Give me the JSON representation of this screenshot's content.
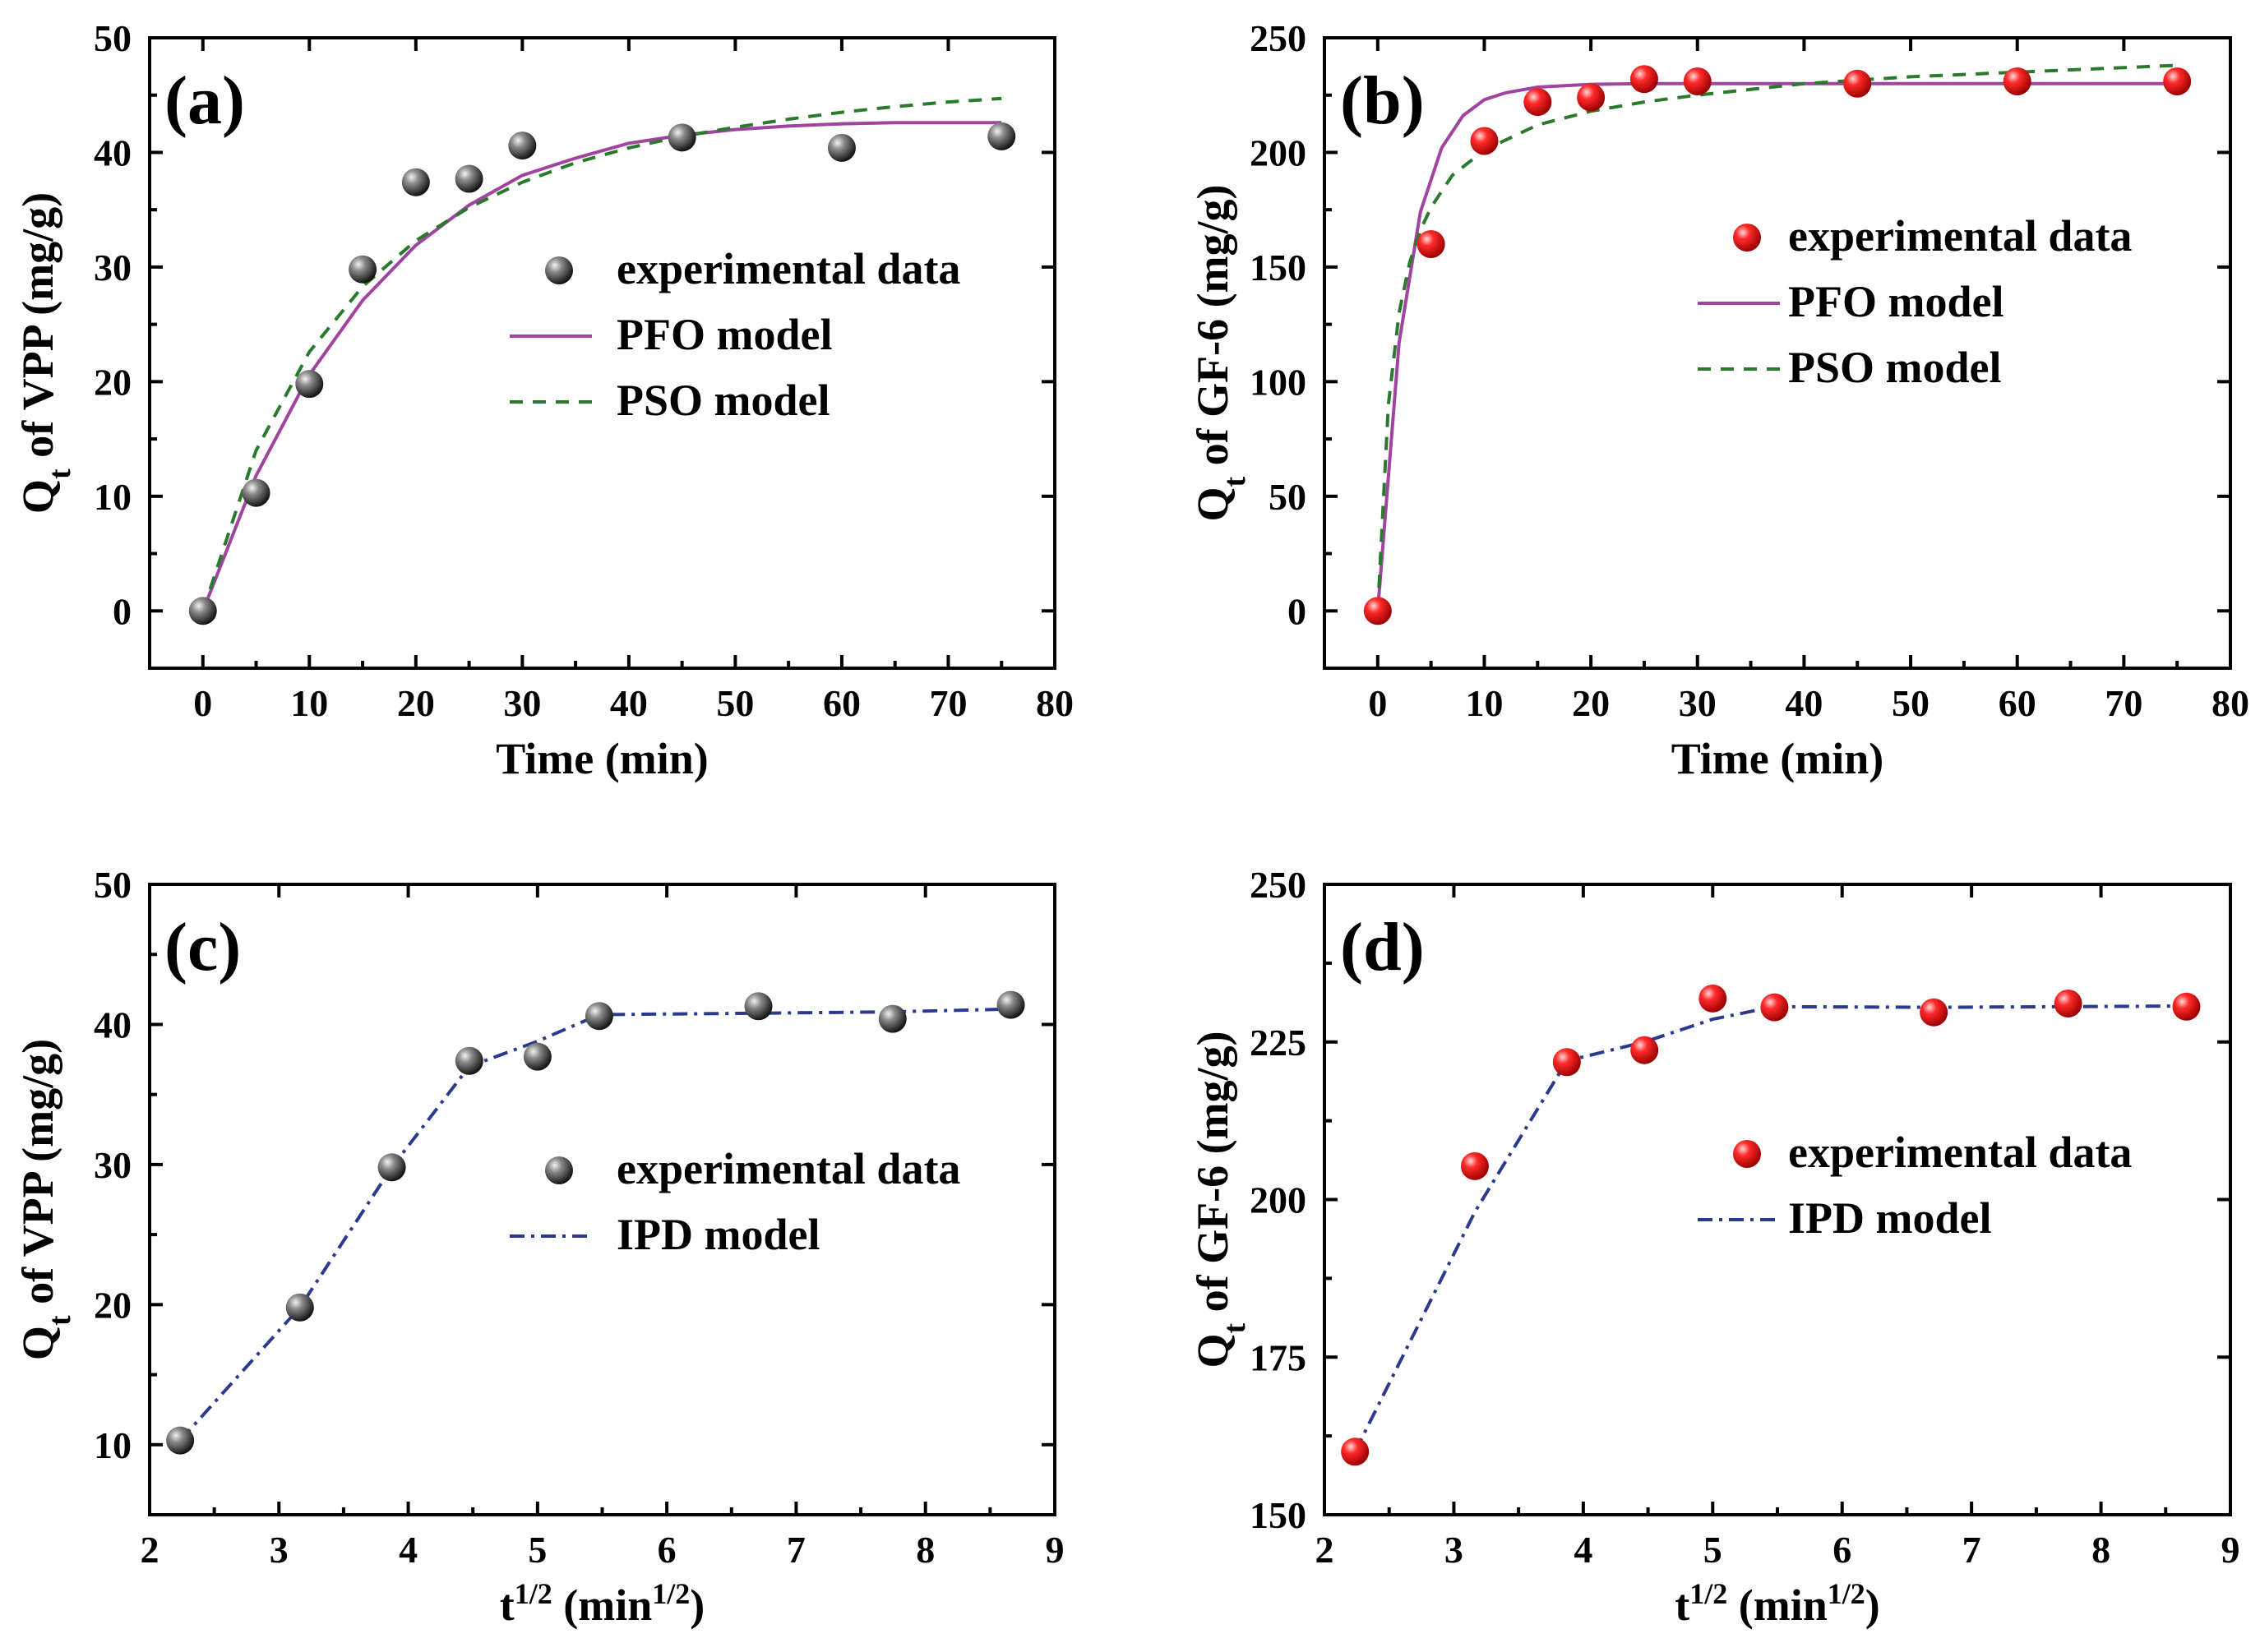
{
  "colors": {
    "pfo": "#a0449f",
    "pso": "#2a7a2e",
    "ipd": "#2b3a8f",
    "vpp_marker": "#3a3a3a",
    "gf6_marker": "#e8141a"
  },
  "chart_data": [
    {
      "id": "a",
      "type": "scatter",
      "panel_label": "(a)",
      "xlabel": "Time (min)",
      "ylabel_main": "Q",
      "ylabel_sub": "t",
      "ylabel_rest": " of VPP (mg/g)",
      "xlim": [
        -5,
        80
      ],
      "ylim": [
        -5,
        50
      ],
      "xticks": [
        0,
        10,
        20,
        30,
        40,
        50,
        60,
        70,
        80
      ],
      "yticks": [
        0,
        10,
        20,
        30,
        40,
        50
      ],
      "marker_style": "vpp",
      "legend": [
        {
          "kind": "marker",
          "style": "vpp",
          "label": "experimental data"
        },
        {
          "kind": "solid",
          "color": "#a0449f",
          "label": "PFO model"
        },
        {
          "kind": "dashed",
          "color": "#2a7a2e",
          "label": "PSO model"
        }
      ],
      "series": [
        {
          "name": "experimental data",
          "kind": "marker",
          "x": [
            0,
            5,
            10,
            15,
            20,
            25,
            30,
            45,
            60,
            75
          ],
          "y": [
            0,
            10.3,
            19.8,
            29.8,
            37.4,
            37.7,
            40.6,
            41.3,
            40.4,
            41.4
          ]
        },
        {
          "name": "PFO model",
          "kind": "solid",
          "color": "#a0449f",
          "x": [
            0,
            5,
            10,
            15,
            20,
            25,
            30,
            35,
            40,
            45,
            50,
            55,
            60,
            65,
            70,
            75
          ],
          "y": [
            0,
            11.8,
            20.6,
            27.1,
            31.9,
            35.4,
            38.0,
            39.5,
            40.8,
            41.5,
            42.0,
            42.3,
            42.5,
            42.6,
            42.6,
            42.6
          ]
        },
        {
          "name": "PSO model",
          "kind": "dashed",
          "color": "#2a7a2e",
          "x": [
            0,
            5,
            10,
            15,
            20,
            25,
            30,
            35,
            40,
            45,
            50,
            55,
            60,
            65,
            70,
            75
          ],
          "y": [
            0,
            14.0,
            22.6,
            28.3,
            32.3,
            35.2,
            37.4,
            39.1,
            40.4,
            41.4,
            42.2,
            42.9,
            43.5,
            44.0,
            44.4,
            44.7
          ]
        }
      ]
    },
    {
      "id": "b",
      "type": "scatter",
      "panel_label": "(b)",
      "xlabel": "Time (min)",
      "ylabel_main": "Q",
      "ylabel_sub": "t",
      "ylabel_rest": " of GF-6 (mg/g)",
      "xlim": [
        -5,
        80
      ],
      "ylim": [
        -25,
        250
      ],
      "xticks": [
        0,
        10,
        20,
        30,
        40,
        50,
        60,
        70,
        80
      ],
      "yticks": [
        0,
        50,
        100,
        150,
        200,
        250
      ],
      "marker_style": "gf6",
      "legend": [
        {
          "kind": "marker",
          "style": "gf6",
          "label": "experimental data"
        },
        {
          "kind": "solid",
          "color": "#a0449f",
          "label": "PFO model"
        },
        {
          "kind": "dashed",
          "color": "#2a7a2e",
          "label": "PSO model"
        }
      ],
      "series": [
        {
          "name": "experimental data",
          "kind": "marker",
          "x": [
            0,
            5,
            10,
            15,
            20,
            25,
            30,
            45,
            60,
            75
          ],
          "y": [
            0,
            160,
            205,
            222,
            224,
            232,
            231,
            230,
            231,
            231
          ]
        },
        {
          "name": "PFO model",
          "kind": "solid",
          "color": "#a0449f",
          "x": [
            0,
            2,
            4,
            6,
            8,
            10,
            12,
            15,
            20,
            25,
            30,
            40,
            50,
            60,
            75
          ],
          "y": [
            0,
            117,
            174,
            202,
            216,
            223,
            226,
            228.5,
            229.7,
            230,
            230,
            230,
            230,
            230,
            230
          ]
        },
        {
          "name": "PSO model",
          "kind": "dashed",
          "color": "#2a7a2e",
          "x": [
            0,
            1,
            2,
            3,
            4,
            5,
            7,
            10,
            15,
            20,
            25,
            30,
            40,
            50,
            60,
            75
          ],
          "y": [
            0,
            90,
            130,
            152,
            166,
            176,
            190,
            201,
            212,
            218,
            222,
            225,
            230,
            233,
            235,
            238
          ]
        }
      ]
    },
    {
      "id": "c",
      "type": "scatter",
      "panel_label": "(c)",
      "xlabel_main": "t",
      "xlabel_sup": "1/2",
      "xlabel_rest": " (min",
      "xlabel_sup2": "1/2",
      "xlabel_end": ")",
      "ylabel_main": "Q",
      "ylabel_sub": "t",
      "ylabel_rest": " of VPP (mg/g)",
      "xlim": [
        2,
        9
      ],
      "ylim": [
        5,
        50
      ],
      "xticks": [
        2,
        3,
        4,
        5,
        6,
        7,
        8,
        9
      ],
      "yticks": [
        10,
        20,
        30,
        40,
        50
      ],
      "marker_style": "vpp",
      "legend": [
        {
          "kind": "marker",
          "style": "vpp",
          "label": "experimental data"
        },
        {
          "kind": "dashdot",
          "color": "#2b3a8f",
          "label": "IPD model"
        }
      ],
      "series": [
        {
          "name": "experimental data",
          "kind": "marker",
          "x": [
            2.236,
            3.162,
            3.873,
            4.472,
            5.0,
            5.477,
            6.708,
            7.746,
            8.66
          ],
          "y": [
            10.3,
            19.8,
            29.8,
            37.4,
            37.7,
            40.6,
            41.3,
            40.4,
            41.4
          ]
        },
        {
          "name": "IPD model",
          "kind": "dashdot",
          "color": "#2b3a8f",
          "x": [
            2.236,
            3.162,
            3.873,
            4.472,
            5.0,
            5.477,
            6.708,
            7.746,
            8.66
          ],
          "y": [
            10.3,
            19.8,
            29.8,
            37.0,
            38.8,
            40.7,
            40.8,
            40.9,
            41.1
          ]
        }
      ]
    },
    {
      "id": "d",
      "type": "scatter",
      "panel_label": "(d)",
      "xlabel_main": "t",
      "xlabel_sup": "1/2",
      "xlabel_rest": " (min",
      "xlabel_sup2": "1/2",
      "xlabel_end": ")",
      "ylabel_main": "Q",
      "ylabel_sub": "t",
      "ylabel_rest": " of GF-6 (mg/g)",
      "xlim": [
        2,
        9
      ],
      "ylim": [
        150,
        250
      ],
      "xticks": [
        2,
        3,
        4,
        5,
        6,
        7,
        8,
        9
      ],
      "yticks": [
        150,
        175,
        200,
        225,
        250
      ],
      "marker_style": "gf6",
      "legend": [
        {
          "kind": "marker",
          "style": "gf6",
          "label": "experimental data"
        },
        {
          "kind": "dashdot",
          "color": "#2b3a8f",
          "label": "IPD model"
        }
      ],
      "series": [
        {
          "name": "experimental data",
          "kind": "marker",
          "x": [
            2.236,
            3.162,
            3.873,
            4.472,
            5.0,
            5.477,
            6.708,
            7.746,
            8.66
          ],
          "y": [
            160,
            205.3,
            221.8,
            223.7,
            231.9,
            230.5,
            229.7,
            231.1,
            230.6
          ]
        },
        {
          "name": "IPD model",
          "kind": "dashdot",
          "color": "#2b3a8f",
          "x": [
            2.236,
            3.162,
            3.873,
            4.472,
            5.0,
            5.477,
            6.708,
            7.746,
            8.66
          ],
          "y": [
            160,
            198,
            222,
            225,
            228.6,
            230.6,
            230.5,
            230.6,
            230.7
          ]
        }
      ]
    }
  ]
}
